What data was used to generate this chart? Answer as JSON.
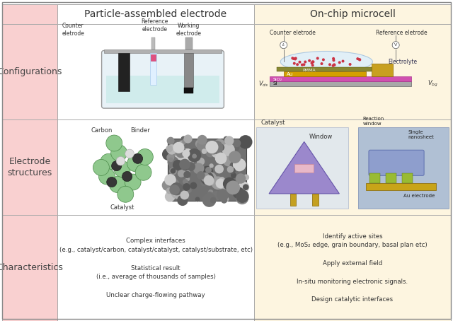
{
  "col_headers": [
    "Particle-assembled electrode",
    "On-chip microcell"
  ],
  "row_headers": [
    "Configurations",
    "Electrode\nstructures",
    "Characteristics"
  ],
  "row_header_bg": "#f9d0d0",
  "col_header_bg_left": "#ffffff",
  "col_header_bg_right": "#fdf5e0",
  "cell_bg_left": "#ffffff",
  "cell_bg_right": "#fdf5e0",
  "border_color": "#aaaaaa",
  "header_fontsize": 10,
  "row_header_fontsize": 9,
  "cell_text_col1": "Complex interfaces\n(e.g., catalyst/carbon, catalyst/catalyst, catalyst/substrate, etc)\n\nStatistical result\n(i.e., average of thousands of samples)\n\nUnclear charge-flowing pathway",
  "cell_text_col2": "Identify active sites\n(e.g., MoS₂ edge, grain boundary, basal plan etc)\n\nApply external field\n\nIn-situ monitoring electronic signals.\n\nDesign catalytic interfaces",
  "fig_bg": "#ffffff"
}
